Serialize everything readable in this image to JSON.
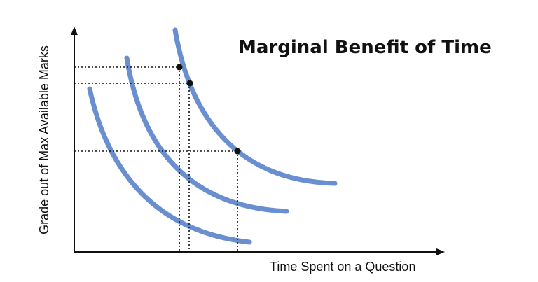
{
  "title": "Marginal Benefit of Time",
  "xlabel": "Time Spent on a Question",
  "ylabel": "Grade out of Max Available Marks",
  "colors": {
    "curve": "#6a8fd0",
    "axis": "#111111",
    "background": "#ffffff"
  },
  "curves": [
    {
      "id": "low"
    },
    {
      "id": "middle"
    },
    {
      "id": "high"
    }
  ],
  "marked_points": [
    {
      "id": "upper-left"
    },
    {
      "id": "upper-right"
    },
    {
      "id": "lower"
    }
  ]
}
